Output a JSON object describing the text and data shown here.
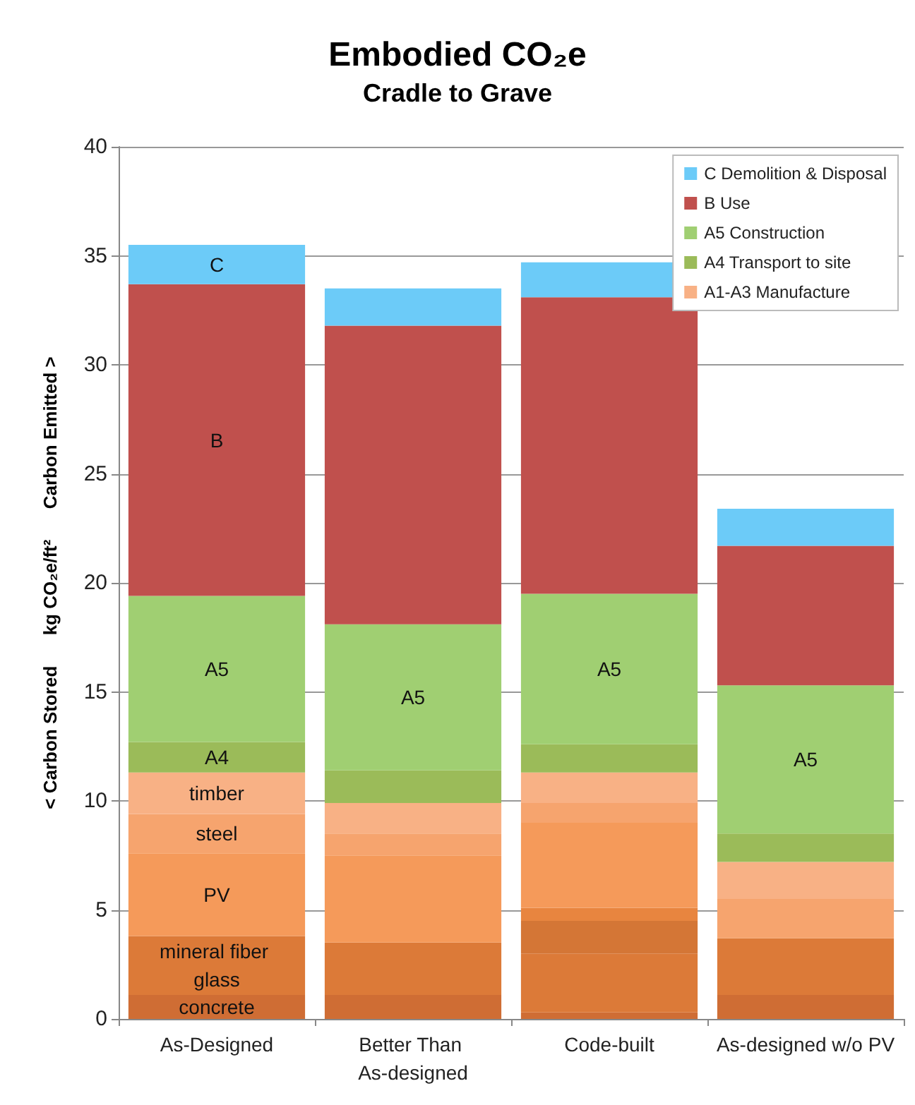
{
  "chart_data": {
    "type": "bar",
    "title": "Embodied CO₂e",
    "subtitle": "Cradle to Grave",
    "ylabel": "< Carbon Stored      kg CO₂e/ft²      Carbon Emitted >",
    "categories": [
      "As-Designed",
      "Better Than As-designed",
      "Code-built",
      "As-designed w/o PV"
    ],
    "stacked": true,
    "grid": "y",
    "legend": "top right",
    "ylim": [
      0,
      40
    ],
    "yticks": [
      0,
      5,
      10,
      15,
      20,
      25,
      30,
      35,
      40
    ],
    "series": [
      {
        "color": "#cf6d34",
        "values": [
          1.1,
          1.1,
          0.3,
          1.1
        ],
        "value_labels": [
          "concrete",
          null,
          null,
          null
        ]
      },
      {
        "color": "#dc7a38",
        "values": [
          2.7,
          2.4,
          2.7,
          2.6
        ],
        "value_labels": [
          "mineral fiber glass",
          null,
          null,
          null
        ]
      },
      {
        "color": "#d47636",
        "values": [
          0,
          0,
          1.5,
          0
        ]
      },
      {
        "color": "#e8853f",
        "values": [
          0,
          0,
          0.6,
          0
        ]
      },
      {
        "color": "#f59a5a",
        "values": [
          3.8,
          4.0,
          3.9,
          0
        ],
        "value_labels": [
          "PV",
          null,
          null,
          null
        ]
      },
      {
        "color": "#f6a46e",
        "values": [
          1.8,
          1.0,
          0.9,
          1.8
        ],
        "value_labels": [
          "steel",
          null,
          null,
          null
        ]
      },
      {
        "name": "A1-A3 Manufacture",
        "color": "#f8b185",
        "values": [
          1.9,
          1.4,
          1.4,
          1.7
        ],
        "value_labels": [
          "timber",
          null,
          null,
          null
        ]
      },
      {
        "name": "A4 Transport to site",
        "color": "#9bbb59",
        "values": [
          1.4,
          1.5,
          1.3,
          1.3
        ],
        "value_labels": [
          "A4",
          null,
          null,
          null
        ]
      },
      {
        "name": "A5 Construction",
        "color": "#a0cf72",
        "values": [
          6.7,
          6.7,
          6.9,
          6.8
        ],
        "value_labels": [
          "A5",
          "A5",
          "A5",
          "A5"
        ]
      },
      {
        "name": "B Use",
        "color": "#c0504d",
        "values": [
          14.3,
          13.7,
          13.6,
          6.4
        ],
        "value_labels": [
          "B",
          null,
          null,
          null
        ]
      },
      {
        "name": "C Demolition & Disposal",
        "color": "#6ccbf8",
        "values": [
          1.8,
          1.7,
          1.6,
          1.7
        ],
        "value_labels": [
          "C",
          null,
          null,
          null
        ]
      }
    ]
  }
}
